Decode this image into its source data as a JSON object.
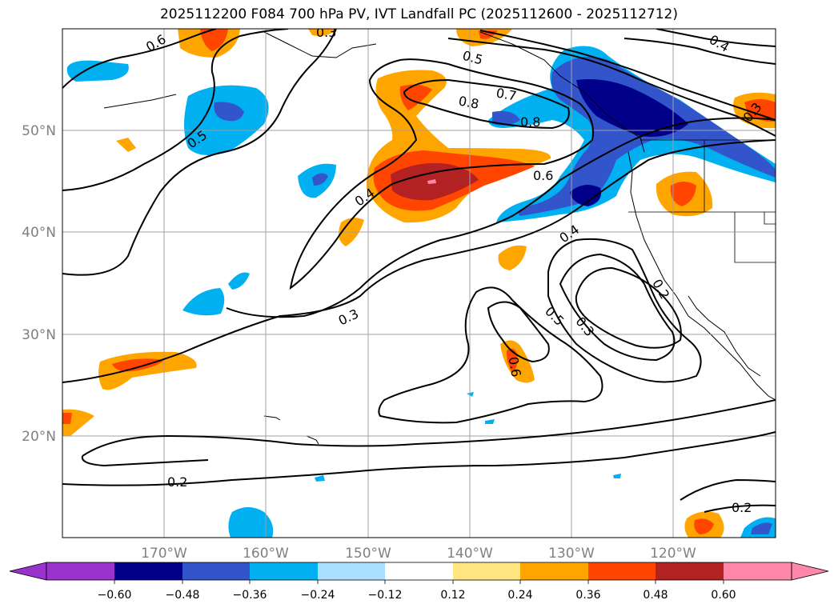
{
  "title": "2025112200 F084 700 hPa PV, IVT Landfall PC (2025112600 - 2025112712)",
  "lat_labels": [
    "50°N",
    "40°N",
    "30°N",
    "20°N"
  ],
  "lon_labels": [
    "170°W",
    "160°W",
    "150°W",
    "140°W",
    "130°W",
    "120°W"
  ],
  "colorbar": {
    "ticks": [
      "−0.60",
      "−0.48",
      "−0.36",
      "−0.24",
      "−0.12",
      "0.12",
      "0.24",
      "0.36",
      "0.48",
      "0.60"
    ],
    "colors": [
      "#9933cc",
      "#00008b",
      "#3355cc",
      "#00b0f0",
      "#aadfff",
      "#ffffff",
      "#ffe680",
      "#ffa500",
      "#ff4500",
      "#b22222",
      "#ff88aa"
    ]
  },
  "contour_labels": [
    "0.6",
    "0.5",
    "0.5",
    "0.7",
    "0.8",
    "0.8",
    "0.6",
    "0.4",
    "0.4",
    "0.3",
    "0.2",
    "0.3",
    "0.5",
    "0.6",
    "0.2",
    "0.2",
    "0.4",
    "0.3",
    "0.3"
  ]
}
